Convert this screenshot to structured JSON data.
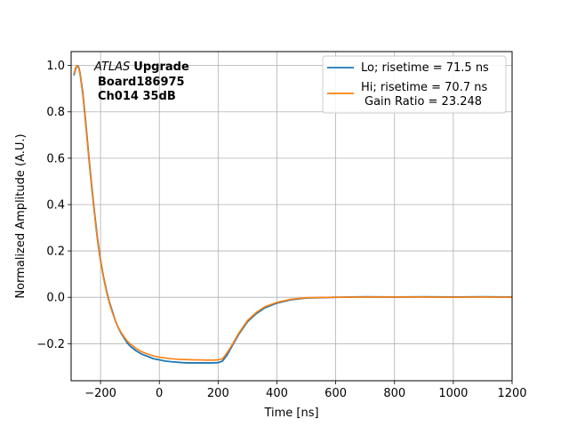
{
  "chart_data": {
    "type": "line",
    "xlabel": "Time [ns]",
    "ylabel": "Normalized Amplitude (A.U.)",
    "xlim": [
      -300,
      1200
    ],
    "ylim": [
      -0.36,
      1.06
    ],
    "xticks": [
      -200,
      0,
      200,
      400,
      600,
      800,
      1000,
      1200
    ],
    "yticks": [
      -0.2,
      0.0,
      0.2,
      0.4,
      0.6,
      0.8,
      1.0
    ],
    "xtick_labels": [
      "−200",
      "0",
      "200",
      "400",
      "600",
      "800",
      "1000",
      "1200"
    ],
    "ytick_labels": [
      "−0.2",
      "0.0",
      "0.2",
      "0.4",
      "0.6",
      "0.8",
      "1.0"
    ],
    "grid": true,
    "legend_position": "top-right",
    "annotation": {
      "experiment_italic": "ATLAS",
      "experiment_bold": "Upgrade",
      "line2": "Board186975",
      "line3": "Ch014 35dB"
    },
    "series": [
      {
        "name": "Lo; risetime = 71.5 ns",
        "color": "#1f77b4",
        "x": [
          -290,
          -285,
          -280,
          -275,
          -270,
          -260,
          -250,
          -240,
          -230,
          -220,
          -210,
          -200,
          -190,
          -180,
          -170,
          -160,
          -150,
          -140,
          -130,
          -120,
          -110,
          -100,
          -80,
          -60,
          -40,
          -20,
          0,
          20,
          40,
          60,
          80,
          100,
          120,
          140,
          160,
          180,
          200,
          215,
          230,
          250,
          270,
          300,
          330,
          360,
          400,
          450,
          500,
          600,
          700,
          800,
          900,
          1000,
          1100,
          1200
        ],
        "y": [
          0.96,
          0.985,
          1.0,
          0.995,
          0.97,
          0.88,
          0.75,
          0.61,
          0.48,
          0.36,
          0.25,
          0.16,
          0.09,
          0.03,
          -0.02,
          -0.06,
          -0.1,
          -0.13,
          -0.155,
          -0.175,
          -0.195,
          -0.21,
          -0.23,
          -0.245,
          -0.255,
          -0.265,
          -0.27,
          -0.275,
          -0.278,
          -0.28,
          -0.282,
          -0.283,
          -0.283,
          -0.283,
          -0.283,
          -0.283,
          -0.282,
          -0.275,
          -0.25,
          -0.205,
          -0.16,
          -0.105,
          -0.07,
          -0.045,
          -0.025,
          -0.01,
          -0.003,
          0.0,
          0.002,
          0.001,
          0.002,
          0.001,
          0.002,
          0.001
        ]
      },
      {
        "name": "Hi; risetime = 70.7 ns",
        "name_line2": "Gain Ratio = 23.248",
        "color": "#ff7f0e",
        "x": [
          -290,
          -285,
          -280,
          -275,
          -270,
          -260,
          -250,
          -240,
          -230,
          -220,
          -210,
          -200,
          -190,
          -180,
          -170,
          -160,
          -150,
          -140,
          -130,
          -120,
          -110,
          -100,
          -80,
          -60,
          -40,
          -20,
          0,
          20,
          40,
          60,
          80,
          100,
          120,
          140,
          160,
          180,
          200,
          215,
          230,
          250,
          270,
          300,
          330,
          360,
          400,
          450,
          500,
          600,
          700,
          800,
          900,
          1000,
          1100,
          1200
        ],
        "y": [
          0.965,
          0.99,
          1.0,
          0.99,
          0.965,
          0.87,
          0.74,
          0.6,
          0.47,
          0.35,
          0.24,
          0.155,
          0.085,
          0.025,
          -0.025,
          -0.065,
          -0.1,
          -0.13,
          -0.152,
          -0.17,
          -0.188,
          -0.2,
          -0.22,
          -0.235,
          -0.245,
          -0.253,
          -0.258,
          -0.262,
          -0.265,
          -0.267,
          -0.268,
          -0.269,
          -0.27,
          -0.27,
          -0.271,
          -0.271,
          -0.27,
          -0.265,
          -0.24,
          -0.2,
          -0.155,
          -0.1,
          -0.065,
          -0.04,
          -0.022,
          -0.008,
          -0.002,
          0.0,
          0.001,
          0.001,
          0.001,
          0.0,
          0.001,
          0.0
        ]
      }
    ]
  }
}
